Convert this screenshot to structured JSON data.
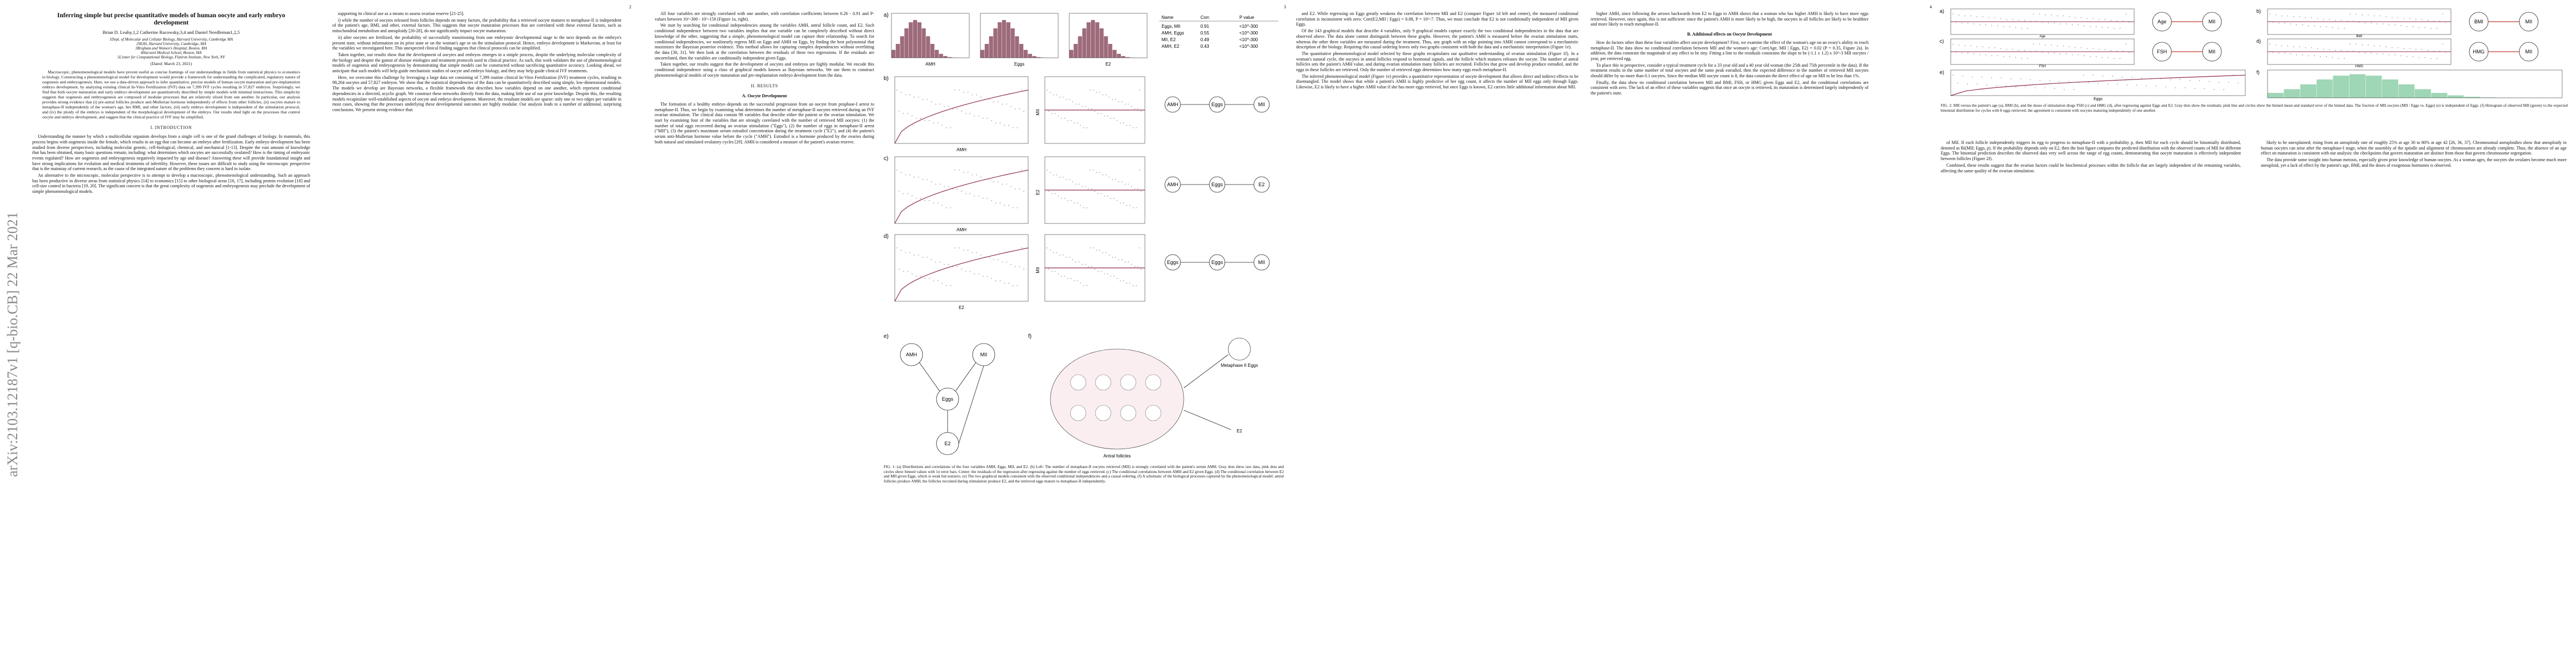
{
  "sidebar": "arXiv:2103.12187v1  [q-bio.CB]  22 Mar 2021",
  "page_numbers": [
    "2",
    "3",
    "4"
  ],
  "pages": [
    {
      "columns": [
        [
          {
            "title": "Inferring simple but precise quantitative models of human oocyte and early embryo development"
          },
          {
            "authors": "Brian D. Leahy,1,2 Catherine Racowsky,3,4 and Daniel Needleman1,2,5"
          },
          {
            "affiliation": "1Dept. of Molecular and Cellular Biology, Harvard University, Cambridge MA"
          },
          {
            "affiliation": "2SEAS, Harvard University, Cambridge, MA"
          },
          {
            "affiliation": "3Brigham and Women's Hospital, Boston, MA"
          },
          {
            "affiliation": "4Harvard Medical School, Boston, MA"
          },
          {
            "affiliation": "5Center for Computational Biology, Flatiron Institute, New York, NY"
          },
          {
            "date": "(Dated: March 23, 2021)"
          },
          {
            "abstract": "Macroscopic, phenomenological models have proven useful as concise framings of our understandings in fields from statistical physics to economics to biology. Constructing a phenomenological model for development would provide a framework for understanding the complicated, regulatory nature of oogenesis and embryogenesis. Here, we use a data-driven approach to infer quantitative, precise models of human oocyte maturation and pre-implantation embryo development, by analyzing existing clinical In-Vitro Fertilization (IVF) data on 7,399 IVF cycles resulting in 57,827 embryos. Surprisingly, we find that both oocyte maturation and early embryo development are quantitatively described by simple models with minimal interactions. This simplicity suggests that oogenesis and embryogenesis are composed of modular processes that are relatively siloed from one another. In particular, our analysis provides strong evidence that (i) pre-antral follicles produce anti-Mullerian hormone independently of effects from other follicles, (ii) oocytes mature to metaphase-II independently of the woman's age, her BMI, and other factors, (iii) early embryo development is independent of the stimulation protocol, and (iv) the ploidy of the embryo is independent of the morphological development of the embryo. Our results shed light on the processes that control oocyte and embryo development, and suggest that the clinical practice of IVF may be simplified."
          },
          {
            "heading": "I.  INTRODUCTION"
          },
          {
            "paragraph": "Understanding the manner by which a multicellular organism develops from a single cell is one of the grand challenges of biology. In mammals, this process begins with oogenesis inside the female, which results in an egg that can become an embryo after fertilization. Early embryo development has been studied from diverse perspectives, including molecular genetic, cell-biological, chemical, and mechanical [1-13]. Despite the vast amount of knowledge that has been obtained, many basic questions remain, including: what determines which oocytes are successfully ovulated? How is the timing of embryonic events regulated? How are oogenesis and embryogenesis negatively impacted by age and disease? Answering these will provide foundational insight and have strong implications for evolution and medical treatments of infertility. However, these issues are difficult to study using the microscopic perspective that is the mainstay of current research, as the cause of the integrated nature of the problems they concern is hard to isolate."
          },
          {
            "paragraph": "An alternative to the microscopic, molecular perspective is to attempt to develop a macroscopic, phenomenological understanding. Such an approach has been productive in diverse areas from statistical physics [14] to economics [15] to other biological areas [16, 17], including protein evolution [18] and cell-size control in bacteria [19, 20]. The significant concern is that the great complexity of oogenesis and embryogenesis may preclude the development of simple phenomenological models."
          }
        ],
        [
          {
            "paragraph": "supporting its clinical use as a means to assess ovarian reserve [21-25]."
          },
          {
            "paragraph": "i) while the number of oocytes released from follicles depends on many factors, the probability that a retrieved oocyte matures to metaphase-II is independent of the patient's age, BMI, and other, external factors. This suggests that oocyte maturation processes that are correlated with these external factors, such as mitochondrial metabolism and aneuploidy [26-28], do not significantly impact oocyte maturation."
          },
          {
            "paragraph": "ii) after oocytes are fertilized, the probability of successfully transitioning from one embryonic developmental stage to the next depends on the embryo's present state, without information on its prior state or on the woman's age or on the stimulation protocol. Hence, embryo development is Markovian, at least for the variables we investigated here. This unexpected clinical finding suggests that clinical protocols can be simplified."
          },
          {
            "paragraph": "Taken together, our results show that the development of oocytes and embryos emerges in a simple process, despite the underlying molecular complexity of the biology and despite the gamut of disease etiologies and treatment protocols used in clinical practice. As such, this work validates the use of phenomenological models of oogenesis and embryogenesis by demonstrating that simple models can be constructed without sacrificing quantitative accuracy. Looking ahead, we anticipate that such models will help guide mechanistic studies of oocyte and embryo biology, and they may help guide clinical IVF treatments."
          },
          {
            "paragraph": "Here, we overcome this challenge by leveraging a large data set consisting of 7,399 routine clinical In-Vitro Fertilization (IVF) treatment cycles, resulting in 98,264 oocytes and 57,827 embryos. We show that the statistical dependencies of the data can be quantitatively described using simple, low-dimensional models. The models we develop are Bayesian networks, a flexible framework that describes how variables depend on one another, which represent conditional dependencies in a directed, acyclic graph. We construct these networks directly from the data, making little use of our prior knowledge. Despite this, the resulting models recapitulate well-established aspects of oocyte and embryo development. Moreover, the resultant models are sparse: only one or two edges per variable in most cases, showing that the processes underlying these developmental outcomes are highly modular. Our analysis leads to a number of additional, surprising conclusions. We present strong evidence that:"
          }
        ]
      ]
    },
    {
      "columns": [
        [
          {
            "paragraph": "All four variables are strongly correlated with one another, with correlation coefficients between 0.26 - 0.91 and P-values between 10^-300 - 10^-150 (Figure 1a, right)."
          },
          {
            "paragraph": "We start by searching for conditional independencies among the variables AMH, antral follicle count, and E2. Such conditional independence between two variables implies that one variable can be completely described without direct knowledge of the other, suggesting that a simple, phenomenological model can capture their relationship. To search for conditional independencies, we nonlinearly regress MII on Eggs and AMH on Eggs, by finding the best polynomial that maximizes the Bayesian posterior evidence. This method allows for capturing complex dependencies without overfitting the data [30, 31]. We then look at the correlation between the residuals of these two regressions. If the residuals are uncorrelated, then the variables are conditionally independent given Eggs."
          },
          {
            "paragraph": "Taken together, our results suggest that the development of oocytes and embryos are highly modular. We encode this conditional independence using a class of graphical models known as Bayesian networks. We use them to construct phenomenological models of oocyte maturation and pre-implantation embryo development from the data."
          },
          {
            "heading": "II.  RESULTS"
          },
          {
            "subheading": "A.  Oocyte Development"
          },
          {
            "paragraph": "The formation of a healthy embryo depends on the successful progression from an oocyte from prophase-I arrest to metaphase-II. Thus, we begin by examining what determines the number of metaphase-II oocytes retrieved during an IVF ovarian stimulation. The clinical data contain 98 variables that describe either the patient or the ovarian stimulation. We start by examining four of the variables that are strongly correlated with the number of retrieved MII oocytes: (1) the number of total eggs recovered during an ovarian stimulation (\"Eggs\"), (2) the number of eggs in metaphase-II arrest (\"MII\"), (3) the patient's maximum serum estradiol concentration during the treatment cycle (\"E2\"), and (4) the patient's serum anti-Mullerian hormone value before the cycle (\"AMH\"). Estradiol is a hormone produced by the ovaries during both natural and stimulated ovulatory cycles [29]. AMH is considered a measure of the patient's ovarian reserve."
          }
        ]
      ]
    },
    {
      "columns": [
        [
          {
            "paragraph": "and E2. While regressing on Eggs greatly weakens the correlation between MII and E2 (compare Figure 1d left and center), the measured conditional correlation is inconsistent with zero: Corr(E2,MII | Eggs) = 0.08, P = 10^-7. Thus, we must conclude that E2 is not conditionally independent of MII given Eggs."
          },
          {
            "paragraph": "Of the 143 graphical models that describe 4 variables, only 9 graphical models capture exactly the two conditional independencies in the data that are observed above. The data alone cannot distinguish between these graphs. However, the patient's AMH is measured before the ovarian stimulation starts, whereas the other three variables are measured during the treatment. Thus, any graph with an edge pointing into AMH cannot correspond to a mechanistic description of the biology. Requiring this causal ordering leaves only two graphs consistent with both the data and a mechanistic interpretation (Figure 1e)."
          },
          {
            "paragraph": "The quantitative phenomenological model selected by these graphs recapitulates our qualitative understanding of ovarian stimulation (Figure 1f). In a woman's natural cycle, the oocytes in antral follicles respond to hormonal signals, and the follicle which matures releases the oocyte. The number of antral follicles sets the patient's AMH value, and during ovarian stimulation many follicles are recruited. Follicles that grow and develop produce estradiol, and the eggs in these follicles are retrieved. Only the number of retrieved eggs determines how many eggs reach metaphase-II."
          },
          {
            "paragraph": "The inferred phenomenological model (Figure 1e) provides a quantitative representation of oocyte development that allows direct and indirect effects to be disentangled. The model shows that while a patient's AMH is highly predictive of her egg count, it affects the number of MII eggs only through Eggs. Likewise, E2 is likely to have a higher AMH value if she has more eggs retrieved, but once Eggs is known, E2 carries little additional information about MII."
          }
        ],
        [
          {
            "paragraph": "higher AMH, since following the arrows backwards from E2 to Eggs to AMH shows that a woman who has higher AMH is likely to have more eggs retrieved. However, once again, this is not sufficient: since the patient's AMH is more likely to be high, the oocytes in all follicles are likely to be healthier and more likely to reach metaphase-II."
          },
          {
            "subheading": "B.  Additional effects on Oocyte Development"
          },
          {
            "paragraph": "How do factors other than these four variables affect oocyte development? First, we examine the effect of the woman's age on an ovary's ability to reach metaphase-II. The data show no conditional correlation between MII and the woman's age: Corr(Age, MII | Eggs, E2) = 0.02 (P = 0.35, Figure 2a). In addition, the data constrain the magnitude of any effect to be tiny. Fitting a line to the residuals constrains the slope to be (-1.1 ± 1.2) x 10^-3 MII oocytes / year, per retrieved egg."
          },
          {
            "paragraph": "To place this in perspective, consider a typical treatment cycle for a 33 year old and a 40 year old woman (the 25th and 75th percentile in the data). If the treatment results in the same number of total oocytes and the same peak estradiol, then the expected difference in the number of retrieved MII oocytes should differ by no more than 0.1 oocytes. Since the median MII oocyte count is 8, the data constrain the direct effect of age on MII to be less than 1%."
          },
          {
            "paragraph": "Finally, the data show no conditional correlation between MII and BMI, FSH, or HMG given Eggs and E2, and the conditional correlations are consistent with zero. The lack of an effect of these variables suggests that once an oocyte is retrieved, its maturation is determined largely independently of the patient's state."
          }
        ]
      ]
    },
    {
      "columns": [
        [
          {
            "paragraph": "of MII. If each follicle independently triggers its egg to progress to metaphase-II with a probability p, then MII for each cycle should be binomially distributed, denoted as Bi(MII; Eggs, p). If the probability depends only on E2, then the foot figure compares the predicted distribution with the observed counts of MII for different Eggs. The binomial prediction describes the observed data very well across the range of egg counts, demonstrating that oocyte maturation is effectively independent between follicles (Figure 2f)."
          },
          {
            "paragraph": "Combined, these results suggest that the ovarian factors could be biochemical processes within the follicle that are largely independent of the remaining variables, affecting the same quality of the ovarian stimulation."
          }
        ],
        [
          {
            "paragraph": "likely to be unexplained; rising from an aneuploidy rate of roughly 25% at age 30 to 80% at age 42 [26, 36, 37]. Chromosomal aneuploidies show that aneuploidy in human oocytes can arise after the metaphase-I stage, when the assembly of the spindle and alignment of chromosomes are already complete. Thus, the absence of an age effect on maturation is consistent with our analysis: the checkpoints that govern maturation are distinct from those that govern chromosome segregation."
          },
          {
            "paragraph": "The data provide some insight into human meiosis, especially given prior knowledge of human oocytes. As a woman ages, the oocytes she ovulates become much more aneuploid, yet a lack of effect by the patient's age, BMI, and the doses of exogenous hormones is observed."
          }
        ]
      ]
    }
  ],
  "figure_1": {
    "panels": [
      "a)",
      "b)",
      "c)",
      "d)",
      "e)",
      "f)"
    ],
    "axis_labels": [
      "AMH",
      "Eggs",
      "E2",
      "MII"
    ],
    "table": {
      "header": [
        "Name",
        "Corr.",
        "P value"
      ],
      "rows": [
        [
          "Eggs, MII",
          "0.91",
          "<10^-300"
        ],
        [
          "AMH, Eggs",
          "0.55",
          "<10^-300"
        ],
        [
          "MII, E2",
          "0.49",
          "<10^-300"
        ],
        [
          "AMH, E2",
          "0.43",
          "<10^-300"
        ]
      ]
    },
    "nodes": [
      "AMH",
      "MII",
      "Eggs",
      "E2"
    ],
    "diagram_labels": [
      "Metaphase II Eggs",
      "Antral follicles",
      "E2"
    ],
    "caption": "FIG. 1: (a) Distributions and correlations of the four variables AMH, Eggs, MII, and E2. (b) Left: The number of metaphase-II oocytes retrieved (MII) is strongly correlated with the patient's serum AMH. Gray dots show raw data, pink dots and circles show binned values with 1σ error bars. Center: the residuals of the regression after regressing against the number of eggs retrieved. (c) The conditional correlations between AMH and E2 given Eggs. (d) The conditional correlation between E2 and MII given Eggs, which is weak but nonzero. (e) The two graphical models consistent with the observed conditional independencies and a causal ordering. (f) A schematic of the biological processes captured by the phenomenological model: antral follicles produce AMH, the follicles recruited during stimulation produce E2, and the retrieved eggs mature to metaphase-II independently."
  },
  "figure_2": {
    "panels": [
      "a)",
      "b)",
      "c)",
      "d)",
      "e)",
      "f)"
    ],
    "nodes": [
      "Age",
      "MII",
      "BMI",
      "MII",
      "FSH",
      "MII",
      "HMG",
      "MII"
    ],
    "axis_labels": [
      "Eggs",
      "Age",
      "BMI",
      "FSH",
      "HMG"
    ],
    "caption": "FIG. 2: MII versus the patient's age (a), BMI (b), and the doses of stimulation drugs FSH (c) and HMG (d), after regressing against Eggs and E2. Gray dots show the residuals; pink line and circles show the binned mean and standard error of the binned data. The fraction of MII oocytes (MII / Eggs vs. Eggs) (e) is independent of Eggs. (f) Histogram of observed MII (green) vs the expected binomial distribution for cycles with 8 eggs retrieved; the agreement is consistent with oocytes maturing independently of one another."
  }
}
